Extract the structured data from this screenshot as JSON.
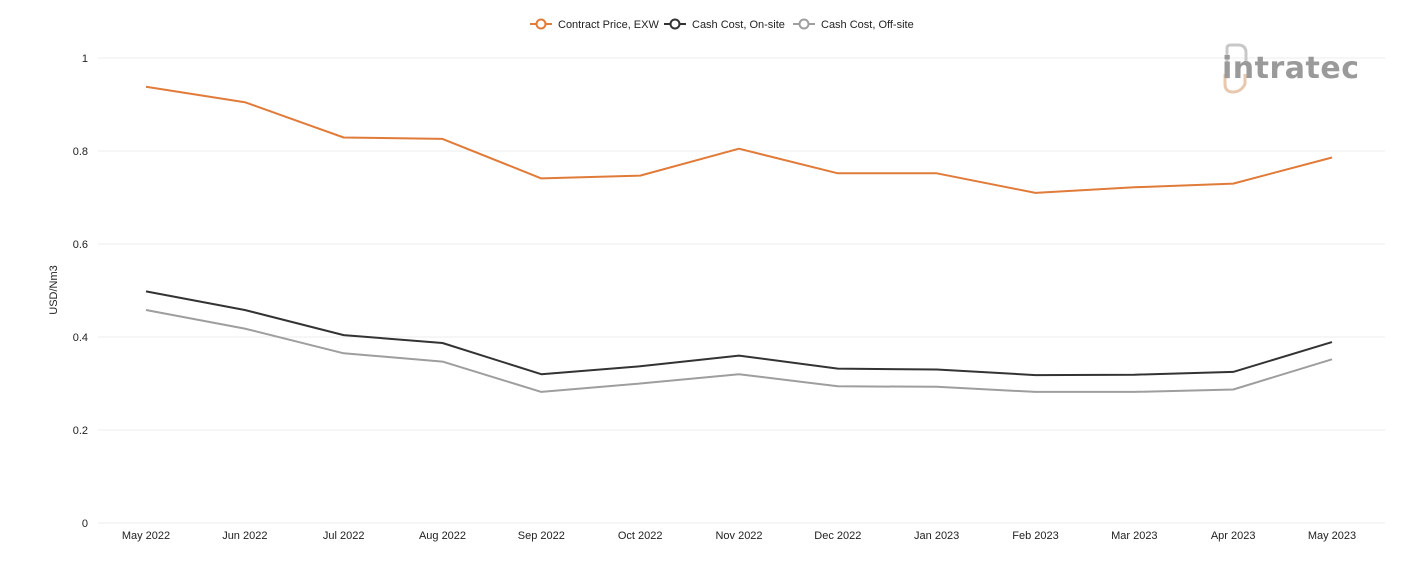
{
  "logo": {
    "text": "intratec",
    "icon": "intratec-logo-icon"
  },
  "chart_data": {
    "type": "line",
    "title": "",
    "xlabel": "",
    "ylabel": "USD/Nm3",
    "categories": [
      "May 2022",
      "Jun 2022",
      "Jul 2022",
      "Aug 2022",
      "Sep 2022",
      "Oct 2022",
      "Nov 2022",
      "Dec 2022",
      "Jan 2023",
      "Feb 2023",
      "Mar 2023",
      "Apr 2023",
      "May 2023"
    ],
    "ylim": [
      0,
      1
    ],
    "yticks": [
      "0",
      "0.2",
      "0.4",
      "0.6",
      "0.8",
      "1"
    ],
    "yticks_values": [
      0,
      0.2,
      0.4,
      0.6,
      0.8,
      1
    ],
    "grid": true,
    "legend_position": "top-center",
    "series": [
      {
        "name": "Contract Price, EXW",
        "color": "#e07b39",
        "values": [
          0.938,
          0.905,
          0.829,
          0.826,
          0.741,
          0.747,
          0.805,
          0.752,
          0.752,
          0.71,
          0.722,
          0.73,
          0.786
        ]
      },
      {
        "name": "Cash Cost, On-site",
        "color": "#333333",
        "values": [
          0.498,
          0.458,
          0.404,
          0.387,
          0.32,
          0.337,
          0.36,
          0.332,
          0.33,
          0.318,
          0.319,
          0.325,
          0.389
        ]
      },
      {
        "name": "Cash Cost, Off-site",
        "color": "#9e9e9e",
        "values": [
          0.458,
          0.418,
          0.365,
          0.347,
          0.282,
          0.3,
          0.32,
          0.294,
          0.293,
          0.282,
          0.282,
          0.287,
          0.352
        ]
      }
    ]
  }
}
